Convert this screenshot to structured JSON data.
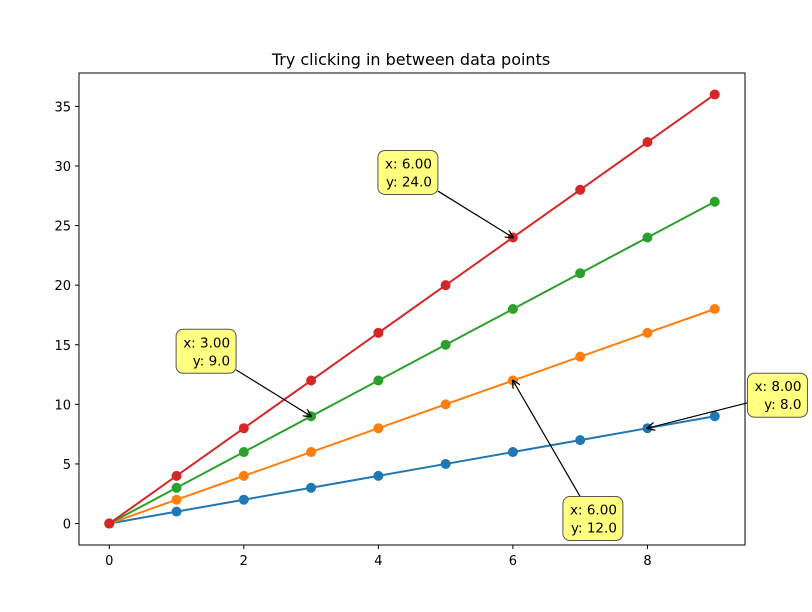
{
  "chart_data": {
    "type": "line",
    "title": "Try clicking in between data points",
    "xlabel": "",
    "ylabel": "",
    "xlim": [
      -0.45,
      9.45
    ],
    "ylim": [
      -1.8,
      37.8
    ],
    "xticks": [
      0,
      2,
      4,
      6,
      8
    ],
    "yticks": [
      0,
      5,
      10,
      15,
      20,
      25,
      30,
      35
    ],
    "x": [
      0,
      1,
      2,
      3,
      4,
      5,
      6,
      7,
      8,
      9
    ],
    "grid": false,
    "series": [
      {
        "color": "#1f77b4",
        "values": [
          0,
          1,
          2,
          3,
          4,
          5,
          6,
          7,
          8,
          9
        ]
      },
      {
        "color": "#ff7f0e",
        "values": [
          0,
          2,
          4,
          6,
          8,
          10,
          12,
          14,
          16,
          18
        ]
      },
      {
        "color": "#2ca02c",
        "values": [
          0,
          3,
          6,
          9,
          12,
          15,
          18,
          21,
          24,
          27
        ]
      },
      {
        "color": "#d62728",
        "values": [
          0,
          4,
          8,
          12,
          16,
          20,
          24,
          28,
          32,
          36
        ]
      }
    ],
    "annotations": [
      {
        "lines": [
          "x: 6.00",
          "y: 24.0"
        ],
        "target": [
          6,
          24
        ],
        "anchor": "upper-left"
      },
      {
        "lines": [
          "x: 3.00",
          "y: 9.0"
        ],
        "target": [
          3,
          9
        ],
        "anchor": "upper-left"
      },
      {
        "lines": [
          "x: 6.00",
          "y: 12.0"
        ],
        "target": [
          6,
          12
        ],
        "anchor": "lower-right"
      },
      {
        "lines": [
          "x: 8.00",
          "y: 8.0"
        ],
        "target": [
          8,
          8
        ],
        "anchor": "upper-right"
      }
    ],
    "annotation_box_color": "#ffff80"
  }
}
